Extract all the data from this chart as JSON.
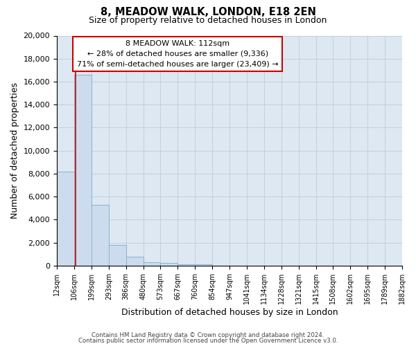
{
  "title": "8, MEADOW WALK, LONDON, E18 2EN",
  "subtitle": "Size of property relative to detached houses in London",
  "xlabel": "Distribution of detached houses by size in London",
  "ylabel": "Number of detached properties",
  "bin_labels": [
    "12sqm",
    "106sqm",
    "199sqm",
    "293sqm",
    "386sqm",
    "480sqm",
    "573sqm",
    "667sqm",
    "760sqm",
    "854sqm",
    "947sqm",
    "1041sqm",
    "1134sqm",
    "1228sqm",
    "1321sqm",
    "1415sqm",
    "1508sqm",
    "1602sqm",
    "1695sqm",
    "1789sqm",
    "1882sqm"
  ],
  "bin_edges": [
    12,
    106,
    199,
    293,
    386,
    480,
    573,
    667,
    760,
    854,
    947,
    1041,
    1134,
    1228,
    1321,
    1415,
    1508,
    1602,
    1695,
    1789,
    1882
  ],
  "bar_heights": [
    8200,
    16600,
    5300,
    1800,
    780,
    300,
    200,
    130,
    90,
    0,
    0,
    0,
    0,
    0,
    0,
    0,
    0,
    0,
    0,
    0
  ],
  "bar_color": "#ccdcee",
  "bar_edge_color": "#8ab0d0",
  "grid_color": "#bbccdd",
  "bg_color": "#dde8f2",
  "property_line_x": 112,
  "property_line_color": "#cc0000",
  "ylim": [
    0,
    20000
  ],
  "annotation_title": "8 MEADOW WALK: 112sqm",
  "annotation_line1": "← 28% of detached houses are smaller (9,336)",
  "annotation_line2": "71% of semi-detached houses are larger (23,409) →",
  "footnote1": "Contains HM Land Registry data © Crown copyright and database right 2024.",
  "footnote2": "Contains public sector information licensed under the Open Government Licence v3.0."
}
